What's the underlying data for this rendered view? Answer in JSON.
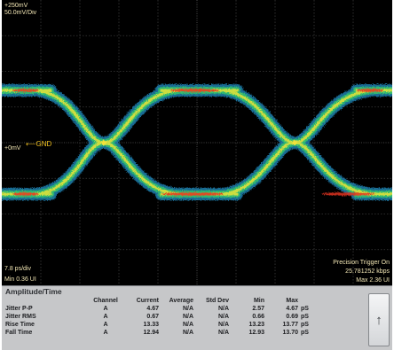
{
  "overlay": {
    "scale_v": "+250mV",
    "scale_vdiv": "50.0mV/Div",
    "offset": "+0mV",
    "gnd": "GND",
    "time_div": "7.8 ps/div",
    "min_ui": "Min 0.36 UI",
    "trigger": "Precision Trigger On",
    "rate": "25.781252 kbps",
    "max_ui": "Max 2.36 UI"
  },
  "panel": {
    "title": "Amplitude/Time",
    "headers": {
      "channel": "Channel",
      "current": "Current",
      "average": "Average",
      "std_dev": "Std Dev",
      "min": "Min",
      "max": "Max"
    },
    "rows": [
      {
        "name": "Jitter P-P",
        "channel": "A",
        "current": "4.67",
        "average": "N/A",
        "std_dev": "N/A",
        "min": "2.57",
        "max": "4.67",
        "unit": "pS"
      },
      {
        "name": "Jitter RMS",
        "channel": "A",
        "current": "0.67",
        "average": "N/A",
        "std_dev": "N/A",
        "min": "0.66",
        "max": "0.69",
        "unit": "pS"
      },
      {
        "name": "Rise Time",
        "channel": "A",
        "current": "13.33",
        "average": "N/A",
        "std_dev": "N/A",
        "min": "13.23",
        "max": "13.77",
        "unit": "pS"
      },
      {
        "name": "Fall Time",
        "channel": "A",
        "current": "12.94",
        "average": "N/A",
        "std_dev": "N/A",
        "min": "12.93",
        "max": "13.70",
        "unit": "pS"
      }
    ],
    "scroll_icon": "up-arrow-icon",
    "scroll_glyph": "↑"
  }
}
